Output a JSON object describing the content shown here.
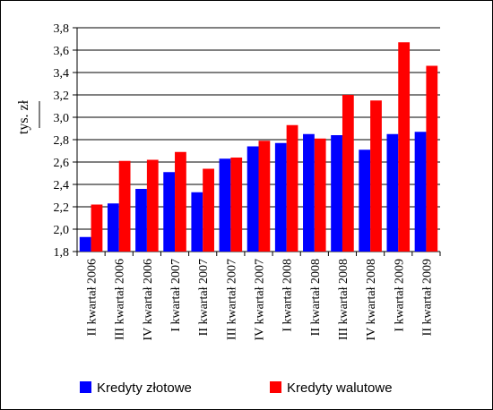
{
  "chart_data": {
    "type": "bar",
    "ylabel": "tys. zł",
    "ylim": [
      1.8,
      3.8
    ],
    "yticks": [
      "1,8",
      "2,0",
      "2,2",
      "2,4",
      "2,6",
      "2,8",
      "3,0",
      "3,2",
      "3,4",
      "3,6",
      "3,8"
    ],
    "categories": [
      "II kwartał 2006",
      "III kwartał 2006",
      "IV kwartał 2006",
      "I kwartał 2007",
      "II kwartał 2007",
      "III kwartał 2007",
      "IV kwartał 2007",
      "I kwartał 2008",
      "II kwartał 2008",
      "III kwartał 2008",
      "IV kwartał 2008",
      "I kwartał 2009",
      "II kwartał 2009"
    ],
    "series": [
      {
        "name": "Kredyty złotowe",
        "color": "#0000ff",
        "values": [
          1.93,
          2.23,
          2.36,
          2.51,
          2.33,
          2.63,
          2.74,
          2.77,
          2.85,
          2.84,
          2.71,
          2.85,
          2.87
        ]
      },
      {
        "name": "Kredyty walutowe",
        "color": "#ff0000",
        "values": [
          2.22,
          2.61,
          2.62,
          2.69,
          2.54,
          2.64,
          2.79,
          2.93,
          2.81,
          3.2,
          3.15,
          3.67,
          3.46
        ]
      }
    ],
    "grid": true,
    "legend": "bottom"
  }
}
